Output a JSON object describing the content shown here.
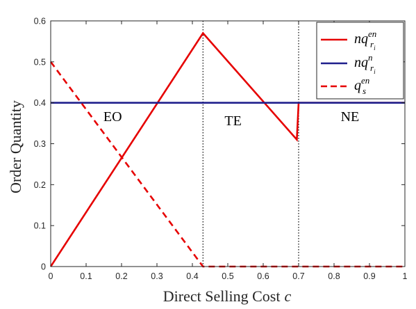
{
  "chart_data": {
    "type": "line",
    "xlabel_main": "Direct Selling Cost",
    "xlabel_var": "c",
    "ylabel": "Order Quantity",
    "xlim": [
      0,
      1
    ],
    "ylim": [
      0,
      0.6
    ],
    "xticks": [
      0,
      0.1,
      0.2,
      0.3,
      0.4,
      0.5,
      0.6,
      0.7,
      0.8,
      0.9,
      1
    ],
    "xtick_labels": [
      "0",
      "0.1",
      "0.2",
      "0.3",
      "0.4",
      "0.5",
      "0.6",
      "0.7",
      "0.8",
      "0.9",
      "1"
    ],
    "yticks": [
      0,
      0.1,
      0.2,
      0.3,
      0.4,
      0.5,
      0.6
    ],
    "ytick_labels": [
      "0",
      "0.1",
      "0.2",
      "0.3",
      "0.4",
      "0.5",
      "0.6"
    ],
    "grid": false,
    "legend_position": "top-right",
    "series": [
      {
        "base": "nq",
        "sub": "r",
        "subsub": "i",
        "sup": "en",
        "color": "#e60000",
        "dash": "solid",
        "x": [
          0,
          0.43,
          0.695,
          0.7,
          1.0
        ],
        "y": [
          0,
          0.57,
          0.31,
          0.4,
          0.4
        ]
      },
      {
        "base": "nq",
        "sub": "r",
        "subsub": "i",
        "sup": "n",
        "color": "#1f1f8c",
        "dash": "solid",
        "x": [
          0,
          1.0
        ],
        "y": [
          0.4,
          0.4
        ]
      },
      {
        "base": "q",
        "sub": "s",
        "subsub": "",
        "sup": "en",
        "color": "#e60000",
        "dash": "dashed",
        "x": [
          0,
          0.43,
          1.0
        ],
        "y": [
          0.5,
          0,
          0
        ]
      }
    ],
    "vlines": [
      0.43,
      0.7
    ],
    "regions": [
      {
        "label": "EO",
        "x": 0.175,
        "y": 0.355
      },
      {
        "label": "TE",
        "x": 0.515,
        "y": 0.345
      },
      {
        "label": "NE",
        "x": 0.845,
        "y": 0.355
      }
    ]
  }
}
